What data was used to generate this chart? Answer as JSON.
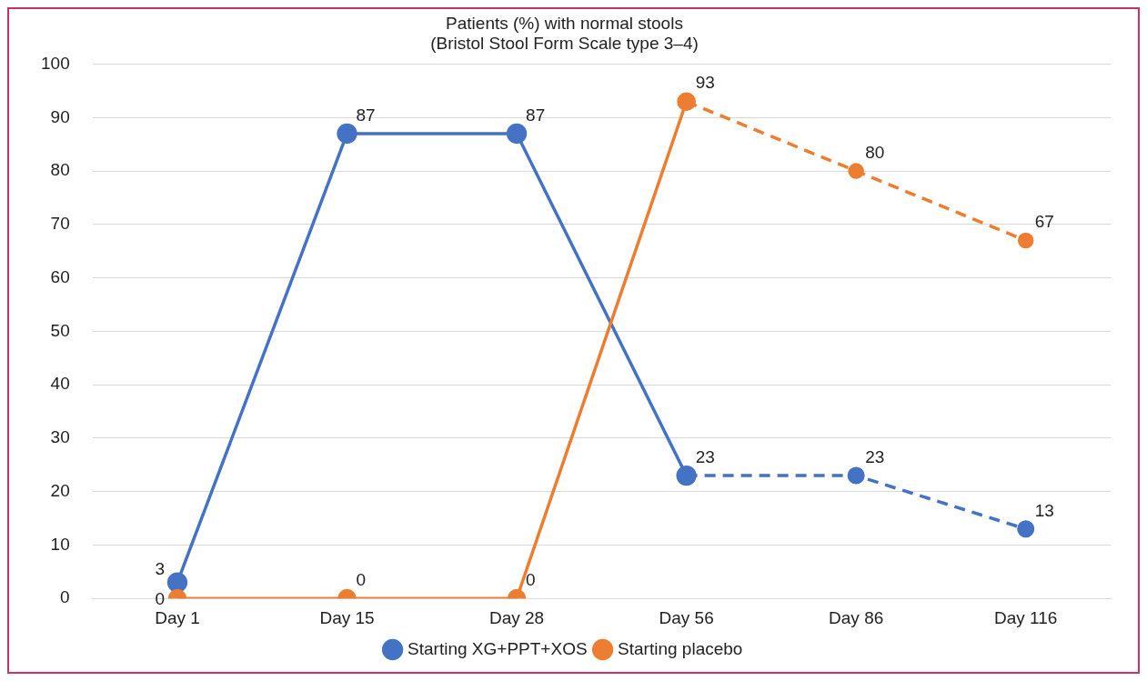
{
  "chart_data": {
    "type": "line",
    "title": [
      "Patients (%) with normal stools",
      "(Bristol Stool Form Scale type 3–4)"
    ],
    "categories": [
      "Day 1",
      "Day 15",
      "Day 28",
      "Day 56",
      "Day 86",
      "Day 116"
    ],
    "series": [
      {
        "name": "Starting XG+PPT+XOS",
        "color": "#4472c4",
        "values": [
          3,
          87,
          87,
          23,
          null,
          null
        ],
        "value_labels": [
          "3",
          "87",
          "87",
          "23",
          null,
          null
        ],
        "line_style": "solid"
      },
      {
        "name": "Starting placebo",
        "color": "#ed7d31",
        "values": [
          0,
          0,
          0,
          93,
          null,
          null
        ],
        "value_labels": [
          "0",
          "0",
          "0",
          "93",
          null,
          null
        ],
        "line_style": "solid"
      },
      {
        "color": "#4472c4",
        "values": [
          null,
          null,
          null,
          23,
          23,
          13
        ],
        "value_labels": [
          null,
          null,
          null,
          null,
          "23",
          "13"
        ],
        "line_style": "dashed"
      },
      {
        "color": "#ed7d31",
        "values": [
          null,
          null,
          null,
          93,
          80,
          67
        ],
        "value_labels": [
          null,
          null,
          null,
          null,
          "80",
          "67"
        ],
        "line_style": "dashed"
      }
    ],
    "ylim": [
      0,
      100
    ],
    "yticks": [
      0,
      10,
      20,
      30,
      40,
      50,
      60,
      70,
      80,
      90,
      100
    ],
    "grid": "y",
    "legend": "bottom",
    "marker": "circle"
  }
}
